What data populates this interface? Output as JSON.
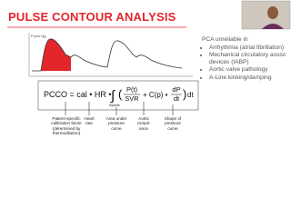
{
  "title": "PULSE CONTOUR ANALYSIS",
  "waveform": {
    "y_label": "P [mm Hg]"
  },
  "formula": {
    "lhs": "PCCO = cal • HR •",
    "integral_limit": "Systole",
    "numerator": "P(t)",
    "denominator": "SVR",
    "middle": "+ C(p) •",
    "d_numerator": "dP",
    "d_denominator": "dt",
    "tail": "dt"
  },
  "annotations": [
    "Patient-specific calibration factor (determined by thermodilution)",
    "Heart rate",
    "Area under pressure curve",
    "Aortic compli-ance",
    "Shape of pressure curve"
  ],
  "notes": {
    "heading": "PCA unreliable in",
    "bullets": [
      "Arrhythmia (atrial fibrillation)",
      "Mechanical circulatory assist devices (IABP)",
      "Aortic valve pathology",
      "A-Line kinking/damping"
    ]
  }
}
